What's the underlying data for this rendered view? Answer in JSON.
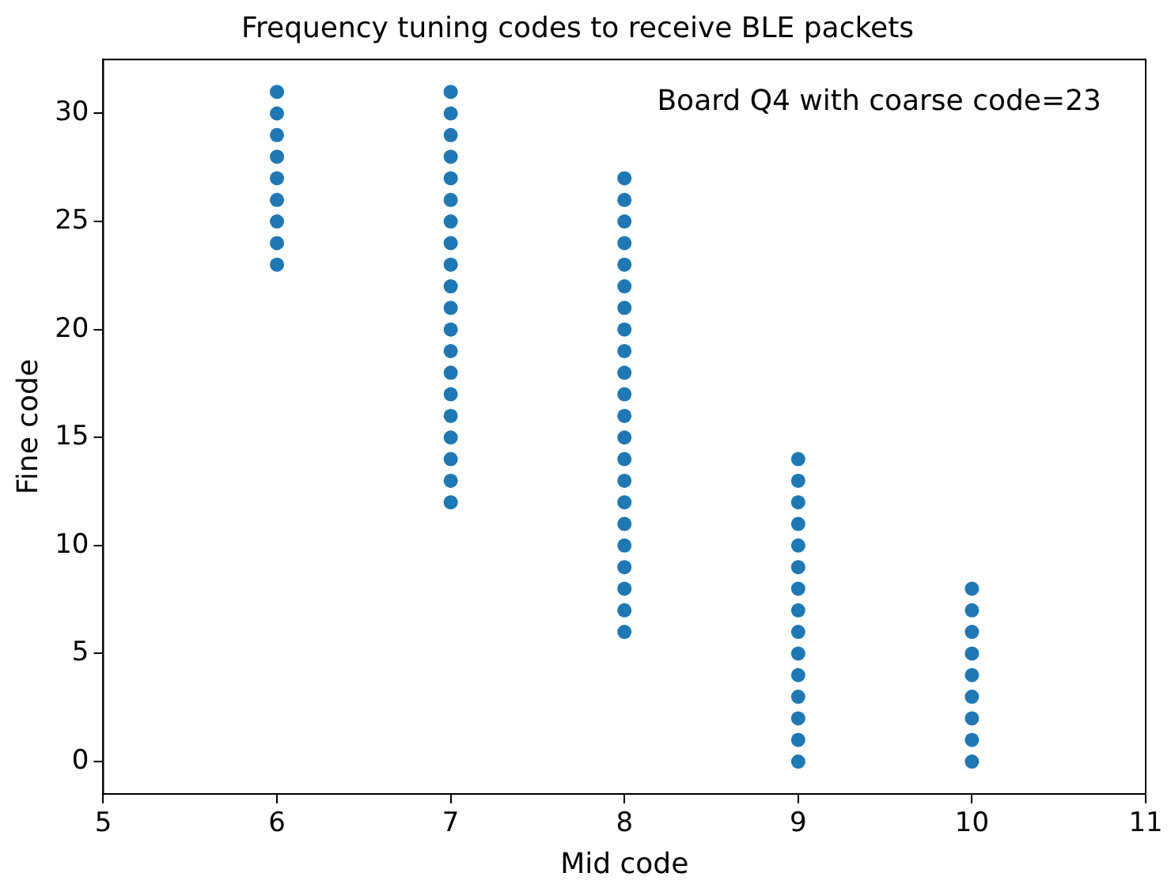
{
  "chart_data": {
    "type": "scatter",
    "title": "Frequency tuning codes to receive BLE packets",
    "xlabel": "Mid code",
    "ylabel": "Fine code",
    "annotations": [
      "Board Q4 with coarse code=23"
    ],
    "series": [
      {
        "color": "#1f77b4",
        "x": [
          6,
          6,
          6,
          6,
          6,
          6,
          6,
          6,
          6,
          7,
          7,
          7,
          7,
          7,
          7,
          7,
          7,
          7,
          7,
          7,
          7,
          7,
          7,
          7,
          7,
          7,
          7,
          7,
          7,
          8,
          8,
          8,
          8,
          8,
          8,
          8,
          8,
          8,
          8,
          8,
          8,
          8,
          8,
          8,
          8,
          8,
          8,
          8,
          8,
          8,
          8,
          9,
          9,
          9,
          9,
          9,
          9,
          9,
          9,
          9,
          9,
          9,
          9,
          9,
          9,
          9,
          10,
          10,
          10,
          10,
          10,
          10,
          10,
          10,
          10
        ],
        "values": [
          23,
          24,
          25,
          26,
          27,
          28,
          29,
          30,
          31,
          12,
          13,
          14,
          15,
          16,
          17,
          18,
          19,
          20,
          21,
          22,
          23,
          24,
          25,
          26,
          27,
          28,
          29,
          30,
          31,
          6,
          7,
          8,
          9,
          10,
          11,
          12,
          13,
          14,
          15,
          16,
          17,
          18,
          19,
          20,
          21,
          22,
          23,
          24,
          25,
          26,
          27,
          0,
          1,
          2,
          3,
          4,
          5,
          6,
          7,
          8,
          9,
          10,
          11,
          12,
          13,
          14,
          0,
          1,
          2,
          3,
          4,
          5,
          6,
          7,
          8
        ]
      }
    ],
    "xlim": [
      5,
      11
    ],
    "xticks": [
      5,
      6,
      7,
      8,
      9,
      10,
      11
    ],
    "ylim": [
      -1.5,
      32.5
    ],
    "yticks": [
      0,
      5,
      10,
      15,
      20,
      25,
      30
    ],
    "grid": false,
    "legend": false,
    "marker": "circle"
  }
}
